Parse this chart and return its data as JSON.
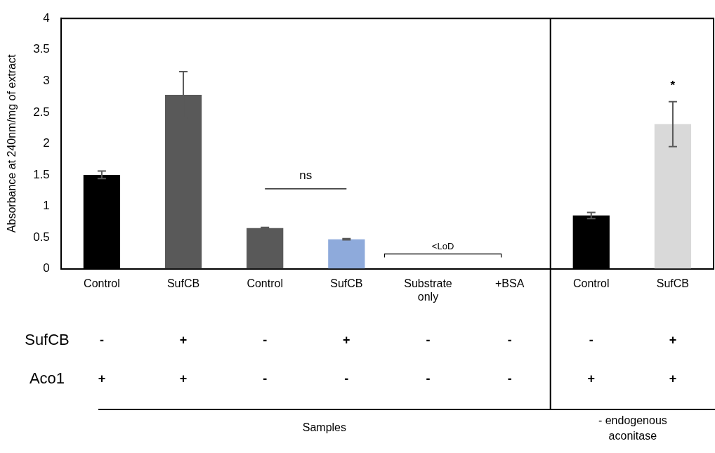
{
  "chart_data": {
    "type": "bar",
    "ylabel": "Absorbance at 240nm/mg of extract",
    "categories": [
      "Control",
      "SufCB",
      "Control",
      "SufCB",
      "Substrate only",
      "+BSA",
      "Control",
      "SufCB"
    ],
    "values": [
      1.5,
      2.78,
      0.65,
      0.47,
      0,
      0,
      0.85,
      2.31
    ],
    "errors": [
      0.06,
      0.37,
      0.01,
      0.01,
      null,
      null,
      0.05,
      0.36
    ],
    "colors": [
      "#000000",
      "#595959",
      "#595959",
      "#8eaadb",
      "#595959",
      "#595959",
      "#000000",
      "#d9d9d9"
    ],
    "ylim": [
      0,
      4
    ],
    "yticks": [
      0,
      0.5,
      1,
      1.5,
      2,
      2.5,
      3,
      3.5,
      4
    ],
    "grid": false,
    "annotations": [
      "ns",
      "<LoD",
      "*",
      "SufCB",
      "-",
      "+",
      "-",
      "+",
      "-",
      "-",
      "-",
      "+",
      "Aco1",
      "+",
      "+",
      "-",
      "-",
      "-",
      "-",
      "+",
      "+",
      "Samples",
      "- endogenous aconitase"
    ]
  }
}
